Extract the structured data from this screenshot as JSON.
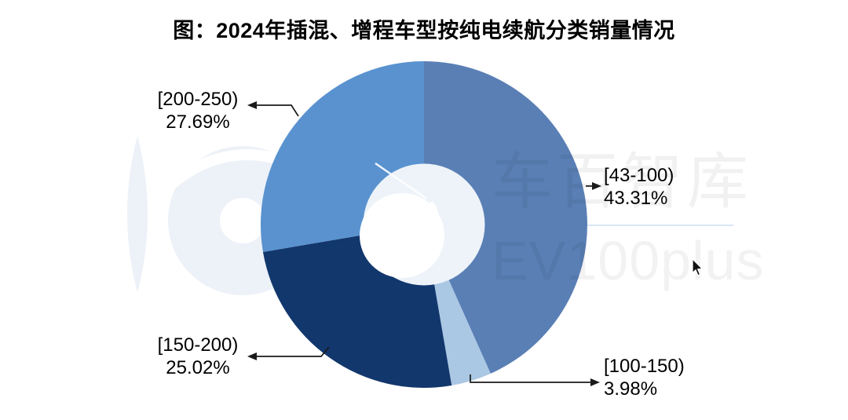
{
  "title": "图：2024年插混、增程车型按纯电续航分类销量情况",
  "chart_data": {
    "type": "pie",
    "subtype": "donut",
    "title": "图：2024年插混、增程车型按纯电续航分类销量情况",
    "unit": "%",
    "start_angle": "top",
    "direction": "clockwise",
    "legend_position": "none (callout labels with leader arrows)",
    "slices": [
      {
        "label": "[43-100)",
        "value": 43.31,
        "pct_label": "43.31%",
        "color": "#5a7fb5"
      },
      {
        "label": "[100-150)",
        "value": 3.98,
        "pct_label": "3.98%",
        "color": "#aac7e4"
      },
      {
        "label": "[150-200)",
        "value": 25.02,
        "pct_label": "25.02%",
        "color": "#12376d"
      },
      {
        "label": "[200-250)",
        "value": 27.69,
        "pct_label": "27.69%",
        "color": "#5992cf"
      }
    ],
    "hole_color": "#edf3f9",
    "background_color": "#ffffff"
  },
  "watermark": {
    "text_cn": "车百智库",
    "text_en": "EV100plus"
  }
}
